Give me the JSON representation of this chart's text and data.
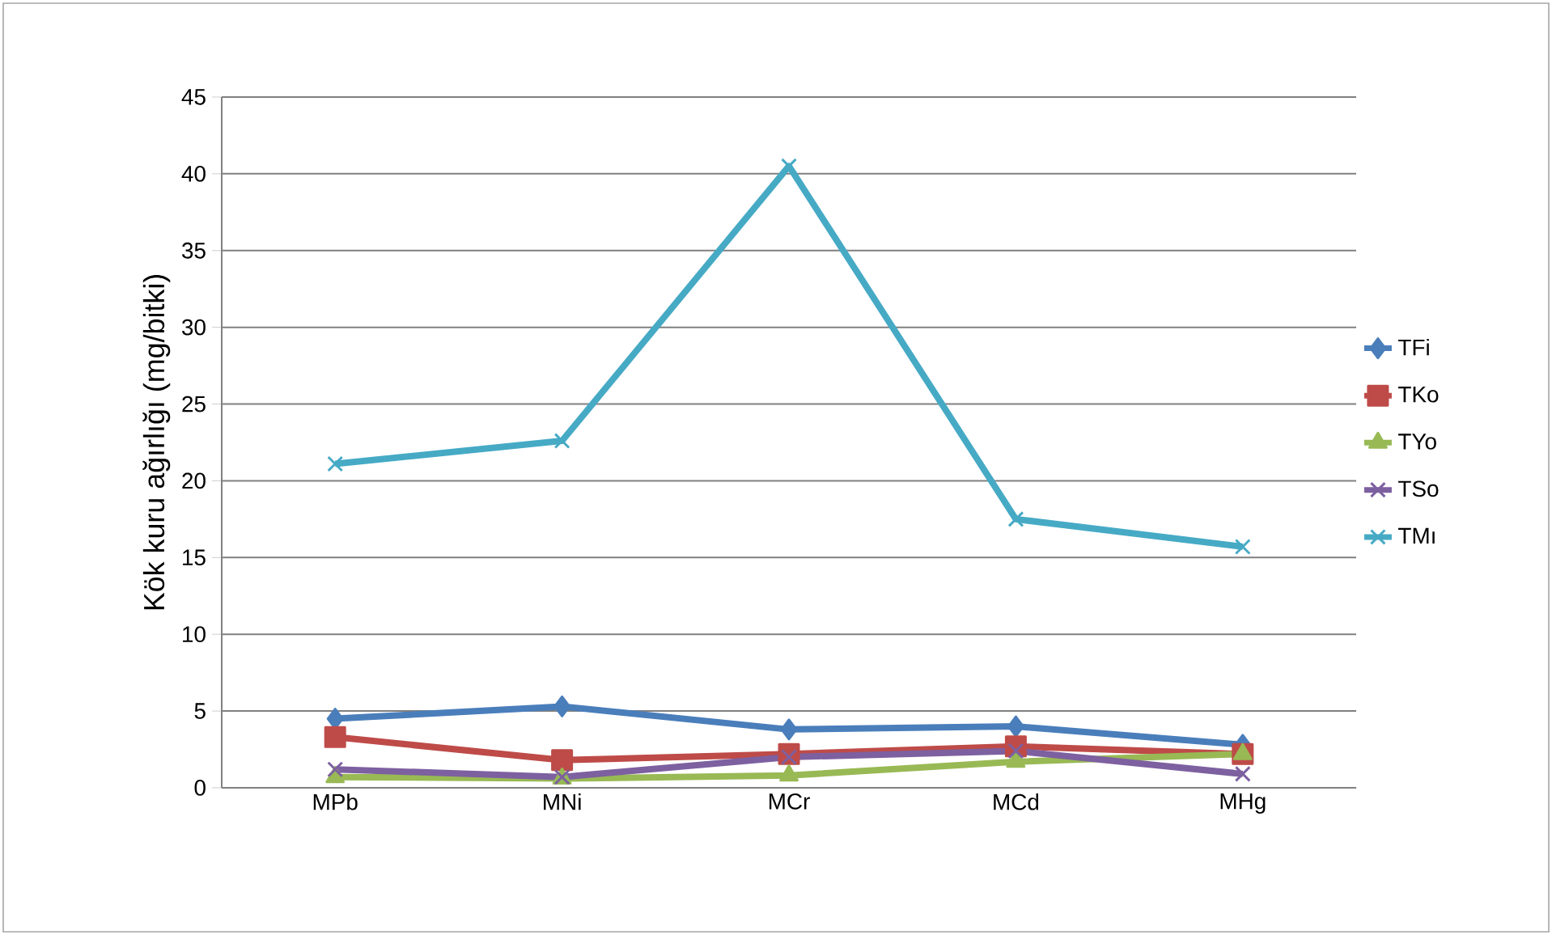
{
  "chart_data": {
    "type": "line",
    "ylabel": "Kök kuru ağırlığı (mg/bitki)",
    "categories": [
      "MPb",
      "MNi",
      "MCr",
      "MCd",
      "MHg"
    ],
    "series": [
      {
        "name": "TFi",
        "color": "#4a7ebb",
        "marker": "diamond",
        "values": [
          4.5,
          5.3,
          3.8,
          4.0,
          2.8
        ]
      },
      {
        "name": "TKo",
        "color": "#be4b48",
        "marker": "square",
        "values": [
          3.3,
          1.8,
          2.2,
          2.7,
          2.2
        ]
      },
      {
        "name": "TYo",
        "color": "#98b954",
        "marker": "triangle",
        "values": [
          0.7,
          0.6,
          0.8,
          1.7,
          2.2
        ]
      },
      {
        "name": "TSo",
        "color": "#7d60a0",
        "marker": "cross",
        "values": [
          1.2,
          0.7,
          2.0,
          2.4,
          0.9
        ]
      },
      {
        "name": "TMı",
        "color": "#46aac5",
        "marker": "cross",
        "values": [
          21.1,
          22.6,
          40.5,
          17.5,
          15.7
        ]
      }
    ],
    "ylim": [
      0,
      45
    ],
    "yticks": [
      0,
      5,
      10,
      15,
      20,
      25,
      30,
      35,
      40,
      45
    ],
    "grid": "y",
    "legend": "right",
    "line_style": "solid"
  }
}
